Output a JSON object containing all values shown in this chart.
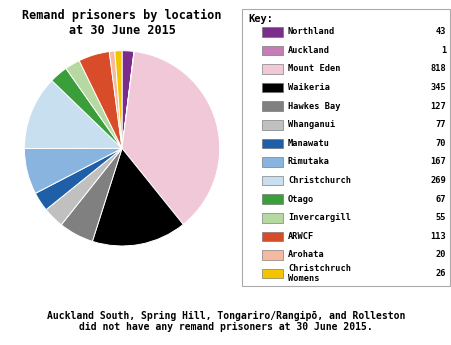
{
  "title": "Remand prisoners by location\nat 30 June 2015",
  "labels": [
    "Northland",
    "Auckland",
    "Mount Eden",
    "Waikeria",
    "Hawkes Bay",
    "Whanganui",
    "Manawatu",
    "Rimutaka",
    "Christchurch",
    "Otago",
    "Invercargill",
    "ARWCF",
    "Arohata",
    "Christchruch\nWomens"
  ],
  "values": [
    43,
    1,
    818,
    345,
    127,
    77,
    70,
    167,
    269,
    67,
    55,
    113,
    20,
    26
  ],
  "colors": [
    "#7b2d8b",
    "#c47db5",
    "#f0c8d8",
    "#000000",
    "#808080",
    "#c0c0c0",
    "#1e5fa8",
    "#8ab4e0",
    "#c8dff0",
    "#3a9e3a",
    "#b5d9a0",
    "#d94c2a",
    "#f5b8a0",
    "#f5c400"
  ],
  "footer": "Auckland South, Spring Hill, Tongariro/Rangipō, and Rolleston\ndid not have any remand prisoners at 30 June 2015.",
  "background_color": "#ffffff",
  "legend_title": "Key:",
  "startangle": 90
}
